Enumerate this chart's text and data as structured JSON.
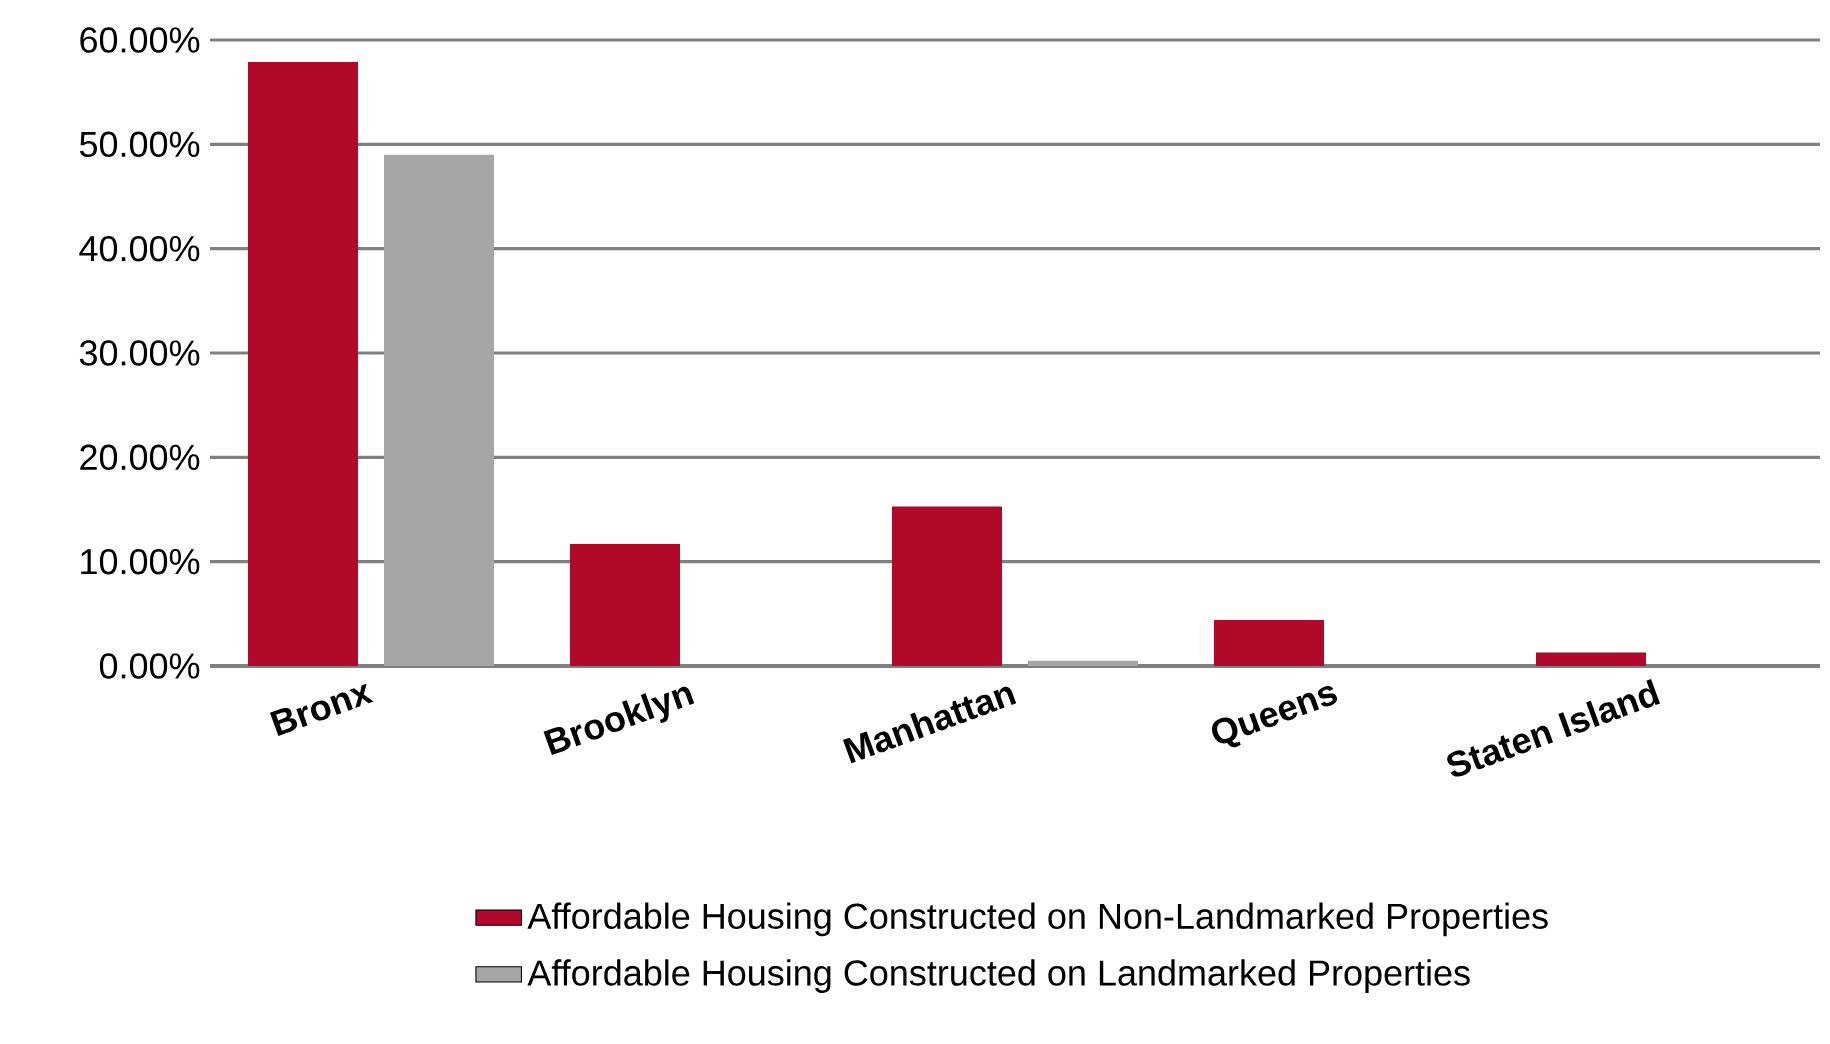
{
  "chart_data": {
    "type": "bar",
    "categories": [
      "Bronx",
      "Brooklyn",
      "Manhattan",
      "Queens",
      "Staten Island"
    ],
    "series": [
      {
        "name": "Affordable Housing Constructed on Non-Landmarked Properties",
        "color": "#b0092a",
        "values": [
          57.9,
          11.7,
          15.3,
          4.4,
          1.3
        ]
      },
      {
        "name": "Affordable Housing Constructed on Landmarked Properties",
        "color": "#a6a6a6",
        "values": [
          49.0,
          0,
          0.5,
          0,
          0
        ]
      }
    ],
    "ylim": [
      0,
      60
    ],
    "yticks": [
      {
        "value": 0,
        "label": "0.00%"
      },
      {
        "value": 10,
        "label": "10.00%"
      },
      {
        "value": 20,
        "label": "20.00%"
      },
      {
        "value": 30,
        "label": "30.00%"
      },
      {
        "value": 40,
        "label": "40.00%"
      },
      {
        "value": 50,
        "label": "50.00%"
      },
      {
        "value": 60,
        "label": "60.00%"
      }
    ],
    "grid": "y",
    "legend": "bottom"
  }
}
